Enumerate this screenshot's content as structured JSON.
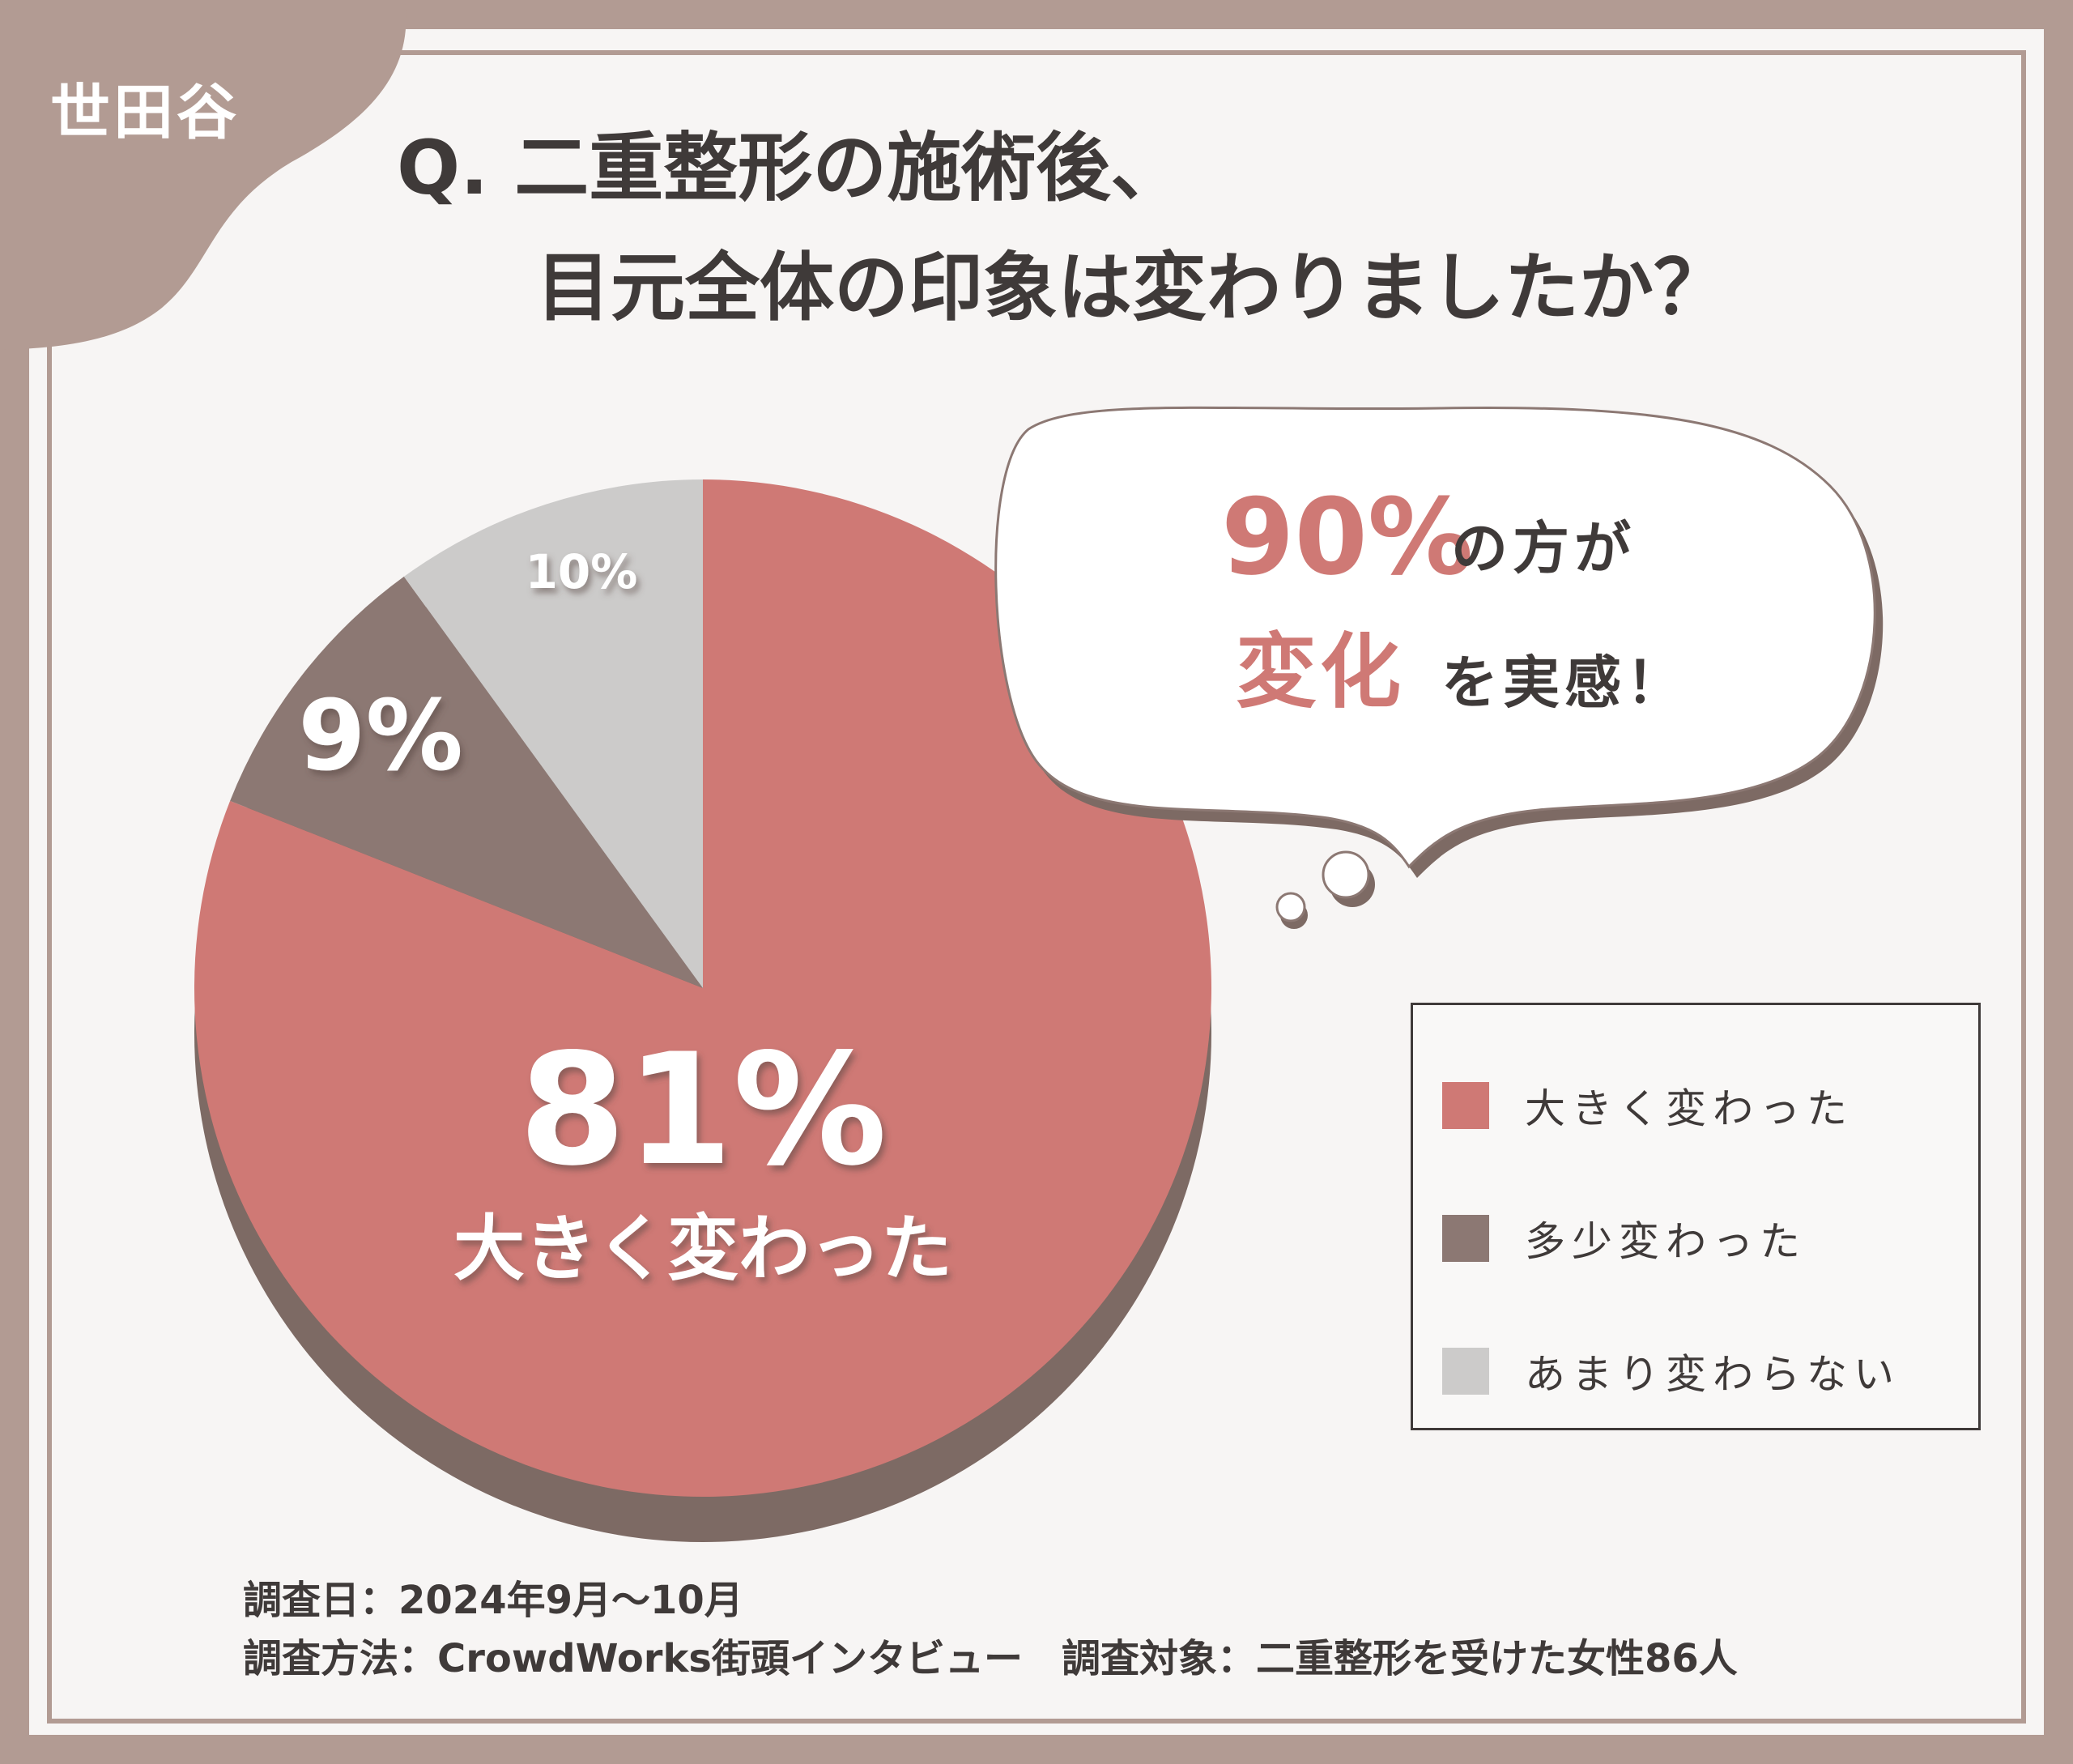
{
  "corner_label": "世田谷",
  "question": {
    "line1": "Q. 二重整形の施術後、",
    "line2": "目元全体の印象は変わりましたか？"
  },
  "chart_data": {
    "type": "pie",
    "categories": [
      "大きく変わった",
      "多少変わった",
      "あまり変わらない"
    ],
    "values": [
      81,
      9,
      10
    ],
    "value_labels": [
      "81%",
      "9%",
      "10%"
    ],
    "highlight_caption": "大きく変わった",
    "colors": [
      "#cf7975",
      "#8c7873",
      "#cccbca"
    ],
    "legend_position": "right"
  },
  "bubble": {
    "pct": "90%",
    "text1": "の方が",
    "highlight": "変化",
    "text2": "を実感！"
  },
  "footer": {
    "line1": "調査日：2024年9月〜10月",
    "line2": "調査方法：CrowdWorks街頭インタビュー　調査対象：二重整形を受けた女性86人"
  },
  "colors": {
    "frame": "#b29b93",
    "accent": "#cf7975",
    "shadow": "#7d6a64",
    "text": "#3f3a39"
  }
}
